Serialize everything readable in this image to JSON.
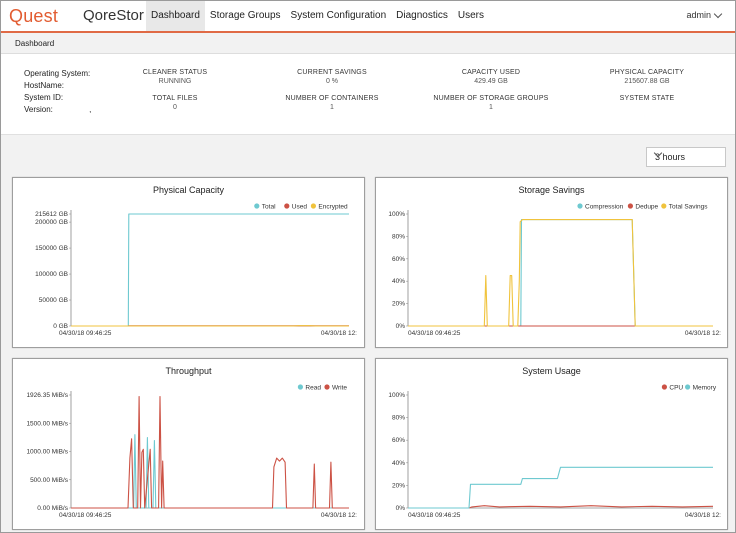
{
  "brand": {
    "logo": "Quest",
    "product": "QoreStor"
  },
  "nav": {
    "items": [
      {
        "label": "Dashboard",
        "active": true
      },
      {
        "label": "Storage Groups"
      },
      {
        "label": "System Configuration"
      },
      {
        "label": "Diagnostics"
      },
      {
        "label": "Users"
      }
    ],
    "user": "admin"
  },
  "breadcrumb": "Dashboard",
  "system_info": {
    "os_label": "Operating System:",
    "host_label": "HostName:",
    "sysid_label": "System ID:",
    "version_label": "Version:",
    "version_value": ","
  },
  "stats": {
    "cleaner_status": {
      "label": "CLEANER STATUS",
      "value": "RUNNING"
    },
    "current_savings": {
      "label": "CURRENT SAVINGS",
      "value": "0 %"
    },
    "capacity_used": {
      "label": "CAPACITY USED",
      "value": "429.49 GB"
    },
    "physical_capacity": {
      "label": "PHYSICAL CAPACITY",
      "value": "215607.88 GB"
    },
    "total_files": {
      "label": "TOTAL FILES",
      "value": "0"
    },
    "containers": {
      "label": "NUMBER OF CONTAINERS",
      "value": "1"
    },
    "storage_groups": {
      "label": "NUMBER OF STORAGE GROUPS",
      "value": "1"
    },
    "system_state": {
      "label": "SYSTEM STATE",
      "value": ""
    }
  },
  "time_range": {
    "selected": "3 hours"
  },
  "colors": {
    "teal": "#6ec9d0",
    "red": "#cc5245",
    "yellow": "#f0c33c",
    "accent": "#e25c31"
  },
  "chart_data": [
    {
      "id": "physical",
      "type": "line",
      "title": "Physical Capacity",
      "y_ticks": [
        "215612 GB",
        "200000 GB",
        "150000 GB",
        "100000 GB",
        "50000 GB",
        "0 GB"
      ],
      "x_start": "04/30/18 09:46:25",
      "x_end": "04/30/18 12:",
      "ylim": [
        0,
        215612
      ],
      "series": [
        {
          "name": "Total",
          "color": "#6ec9d0",
          "points": [
            [
              0,
              0
            ],
            [
              0.206,
              0
            ],
            [
              0.208,
              215612
            ],
            [
              1,
              215612
            ]
          ]
        },
        {
          "name": "Used",
          "color": "#cc5245",
          "points": [
            [
              0,
              0
            ],
            [
              0.206,
              0
            ],
            [
              0.208,
              430
            ],
            [
              1,
              430
            ]
          ]
        },
        {
          "name": "Encrypted",
          "color": "#f0c33c",
          "points": [
            [
              0,
              0
            ],
            [
              0.206,
              0
            ],
            [
              0.208,
              0
            ],
            [
              0.8,
              0
            ],
            [
              0.82,
              500
            ],
            [
              0.86,
              500
            ],
            [
              0.88,
              0
            ],
            [
              1,
              0
            ]
          ]
        }
      ]
    },
    {
      "id": "savings",
      "type": "line",
      "title": "Storage Savings",
      "y_ticks": [
        "100%",
        "80%",
        "60%",
        "40%",
        "20%",
        "0%"
      ],
      "x_start": "04/30/18 09:46:25",
      "x_end": "04/30/18 12:",
      "ylim": [
        0,
        100
      ],
      "series": [
        {
          "name": "Compression",
          "color": "#6ec9d0",
          "points": [
            [
              0,
              0
            ],
            [
              0.37,
              0
            ],
            [
              0.372,
              95
            ],
            [
              0.735,
              95
            ],
            [
              0.745,
              0
            ],
            [
              1,
              0
            ]
          ]
        },
        {
          "name": "Dedupe",
          "color": "#cc5245",
          "points": [
            [
              0,
              0
            ],
            [
              1,
              0
            ]
          ]
        },
        {
          "name": "Total Savings",
          "color": "#f0c33c",
          "points": [
            [
              0,
              0
            ],
            [
              0.25,
              0
            ],
            [
              0.255,
              45
            ],
            [
              0.26,
              0
            ],
            [
              0.33,
              0
            ],
            [
              0.335,
              45
            ],
            [
              0.34,
              45
            ],
            [
              0.345,
              0
            ],
            [
              0.36,
              0
            ],
            [
              0.365,
              40
            ],
            [
              0.368,
              93
            ],
            [
              0.375,
              95
            ],
            [
              0.735,
              95
            ],
            [
              0.745,
              0
            ],
            [
              1,
              0
            ]
          ]
        }
      ]
    },
    {
      "id": "throughput",
      "type": "line",
      "title": "Throughput",
      "y_ticks": [
        "1926.35 MiB/s",
        "1500.00 MiB/s",
        "1000.00 MiB/s",
        "500.00 MiB/s",
        "0.00 MiB/s"
      ],
      "x_start": "04/30/18 09:46:25",
      "x_end": "04/30/18 12:",
      "ylim": [
        0,
        1926.35
      ],
      "series": [
        {
          "name": "Read",
          "color": "#6ec9d0",
          "points": [
            [
              0,
              0
            ],
            [
              0.225,
              0
            ],
            [
              0.23,
              1250
            ],
            [
              0.235,
              0
            ],
            [
              0.27,
              0
            ],
            [
              0.275,
              1200
            ],
            [
              0.28,
              0
            ],
            [
              0.295,
              0
            ],
            [
              0.3,
              1150
            ],
            [
              0.305,
              0
            ],
            [
              1,
              0
            ]
          ]
        },
        {
          "name": "Write",
          "color": "#cc5245",
          "points": [
            [
              0,
              0
            ],
            [
              0.205,
              0
            ],
            [
              0.212,
              850
            ],
            [
              0.218,
              1180
            ],
            [
              0.224,
              0
            ],
            [
              0.24,
              0
            ],
            [
              0.245,
              1900
            ],
            [
              0.25,
              0
            ],
            [
              0.255,
              950
            ],
            [
              0.26,
              1000
            ],
            [
              0.265,
              0
            ],
            [
              0.285,
              1000
            ],
            [
              0.29,
              0
            ],
            [
              0.315,
              0
            ],
            [
              0.32,
              1900
            ],
            [
              0.326,
              0
            ],
            [
              0.33,
              800
            ],
            [
              0.335,
              0
            ],
            [
              0.725,
              0
            ],
            [
              0.73,
              700
            ],
            [
              0.74,
              850
            ],
            [
              0.75,
              800
            ],
            [
              0.76,
              850
            ],
            [
              0.77,
              780
            ],
            [
              0.775,
              0
            ],
            [
              0.87,
              0
            ],
            [
              0.875,
              750
            ],
            [
              0.88,
              0
            ],
            [
              0.93,
              0
            ],
            [
              0.935,
              780
            ],
            [
              0.94,
              0
            ],
            [
              1,
              0
            ]
          ]
        }
      ]
    },
    {
      "id": "usage",
      "type": "line",
      "title": "System Usage",
      "y_ticks": [
        "100%",
        "80%",
        "60%",
        "40%",
        "20%",
        "0%"
      ],
      "x_start": "04/30/18 09:46:25",
      "x_end": "04/30/18 12:",
      "ylim": [
        0,
        100
      ],
      "series": [
        {
          "name": "CPU",
          "color": "#cc5245",
          "points": [
            [
              0,
              0
            ],
            [
              0.2,
              0
            ],
            [
              0.21,
              1
            ],
            [
              0.25,
              2
            ],
            [
              0.3,
              1
            ],
            [
              0.4,
              1.5
            ],
            [
              0.5,
              1
            ],
            [
              0.6,
              2
            ],
            [
              0.7,
              1
            ],
            [
              0.8,
              1.5
            ],
            [
              0.9,
              1
            ],
            [
              1,
              1.5
            ]
          ]
        },
        {
          "name": "Memory",
          "color": "#6ec9d0",
          "points": [
            [
              0,
              0
            ],
            [
              0.2,
              0
            ],
            [
              0.205,
              21
            ],
            [
              0.37,
              21
            ],
            [
              0.375,
              26
            ],
            [
              0.49,
              26
            ],
            [
              0.5,
              36
            ],
            [
              1,
              36
            ]
          ]
        }
      ]
    }
  ]
}
